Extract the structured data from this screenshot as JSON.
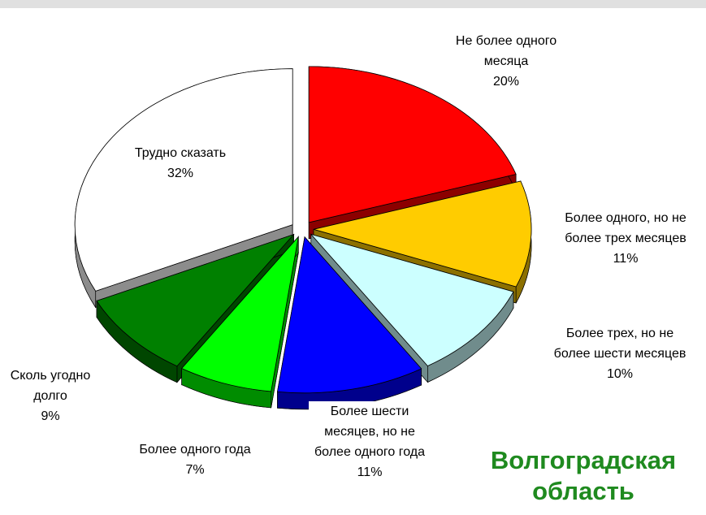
{
  "chart_data": {
    "type": "pie",
    "annotation": "Волгоградская область",
    "categories": [
      "Не более одного месяца",
      "Более одного, но не более трех месяцев",
      "Более трех, но не более шести месяцев",
      "Более шести месяцев, но не более одного года",
      "Более одного года",
      "Сколь угодно долго",
      "Трудно сказать"
    ],
    "values": [
      20,
      11,
      10,
      11,
      7,
      9,
      32
    ],
    "value_labels": [
      "20%",
      "11%",
      "10%",
      "11%",
      "7%",
      "9%",
      "32%"
    ],
    "colors": [
      "#ff0000",
      "#ffcc00",
      "#ccffff",
      "#0000ff",
      "#00ff00",
      "#008000",
      "#ffffff"
    ]
  }
}
